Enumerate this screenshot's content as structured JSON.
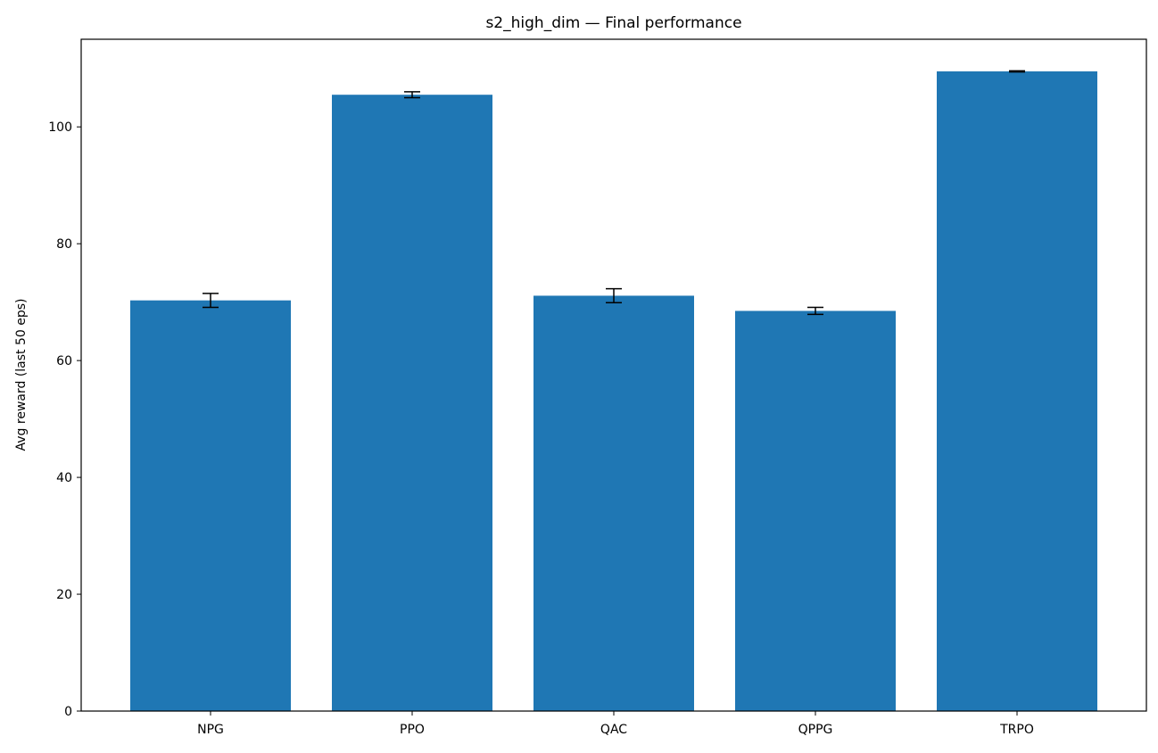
{
  "chart_data": {
    "type": "bar",
    "title": "s2_high_dim — Final performance",
    "xlabel": "",
    "ylabel": "Avg reward (last 50 eps)",
    "categories": [
      "NPG",
      "PPO",
      "QAC",
      "QPPG",
      "TRPO"
    ],
    "values": [
      70.3,
      105.5,
      71.1,
      68.5,
      109.5
    ],
    "errors": [
      1.2,
      0.5,
      1.2,
      0.6,
      0.1
    ],
    "ylim": [
      0,
      115
    ],
    "yticks": [
      0,
      20,
      40,
      60,
      80,
      100
    ],
    "grid": false,
    "legend": "none",
    "bar_color": "#1f77b4",
    "error_color": "#000000"
  }
}
